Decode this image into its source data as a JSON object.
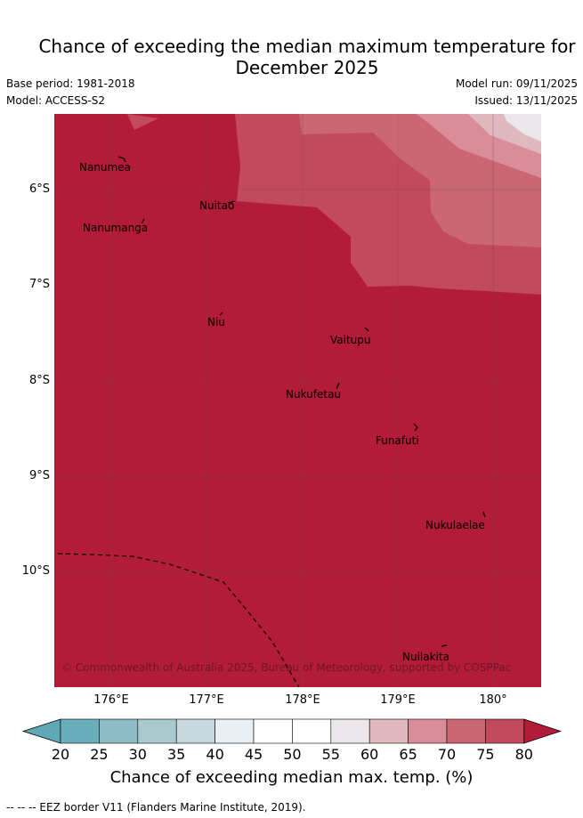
{
  "title": {
    "line1": "Chance of exceeding the median maximum temperature for",
    "line2": "December 2025"
  },
  "meta": {
    "base_period": "Base period: 1981-2018",
    "model": "Model: ACCESS-S2",
    "model_run": "Model run: 09/11/2025",
    "issued": "Issued: 13/11/2025"
  },
  "axes": {
    "lat_labels": [
      "6°S",
      "7°S",
      "8°S",
      "9°S",
      "10°S"
    ],
    "lon_labels": [
      "176°E",
      "177°E",
      "178°E",
      "179°E",
      "180°"
    ]
  },
  "islands": [
    "Nanumea",
    "Nuitao",
    "Nanumanga",
    "Niu",
    "Vaitupu",
    "Nukufetau",
    "Funafuti",
    "Nukulaelae",
    "Nuilakita"
  ],
  "copyright": "© Commonwealth of Australia 2025, Bureau of Meteorology, supported by COSPPac",
  "colorbar": {
    "ticks": [
      "20",
      "25",
      "30",
      "35",
      "40",
      "45",
      "50",
      "55",
      "60",
      "65",
      "70",
      "75",
      "80"
    ],
    "colors": [
      "#6aaebb",
      "#8ebcc6",
      "#a9c9ce",
      "#c8d9de",
      "#e9eff2",
      "#ffffff",
      "#ffffff",
      "#eae6e9",
      "#dfb8c0",
      "#d88d98",
      "#cb6673",
      "#c24a5b"
    ],
    "low_extend_color": "#5fa9b6",
    "high_extend_color": "#b31c37",
    "label": "Chance of exceeding median max. temp. (%)"
  },
  "map_colors": {
    "above_80": "#b31c37",
    "band_75_80": "#c24a5b",
    "band_70_75": "#cb6673",
    "band_65_70": "#d88d98",
    "band_60_65": "#dfb8c0",
    "band_55_60": "#eae6e9"
  },
  "footer": "--  --  -- EEZ border V11 (Flanders Marine Institute, 2019)."
}
